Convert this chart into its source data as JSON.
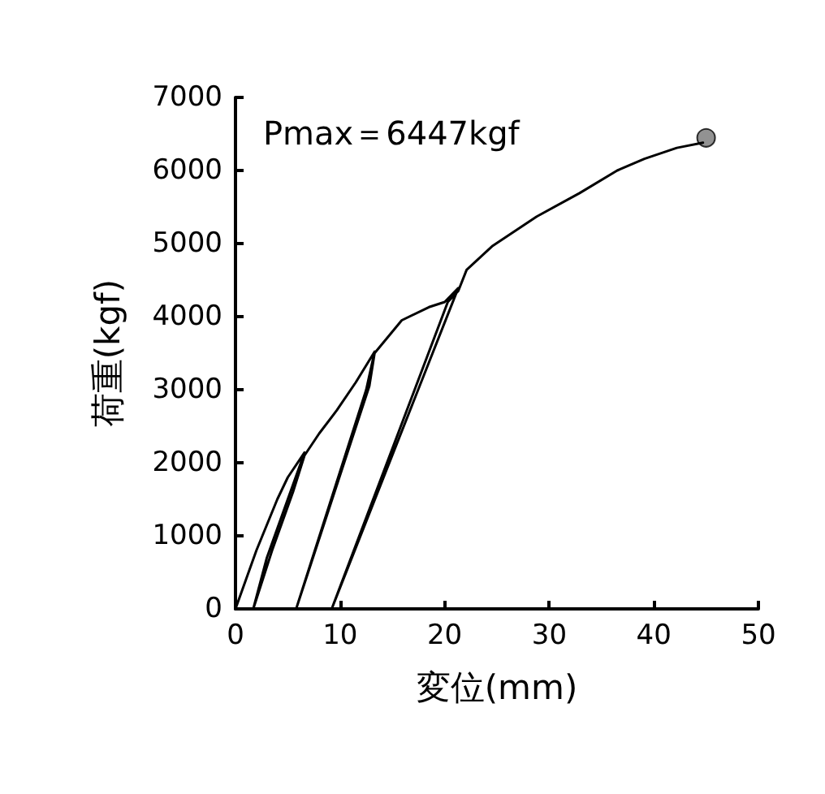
{
  "chart_data": {
    "type": "line",
    "xlabel": "変位(mm)",
    "ylabel": "荷重(kgf)",
    "annotations": [
      "Pmax＝6447kgf"
    ],
    "xlim": [
      0,
      50
    ],
    "xticks": [
      0,
      10,
      20,
      30,
      40,
      50
    ],
    "ylim": [
      0,
      7000
    ],
    "yticks": [
      0,
      1000,
      2000,
      3000,
      4000,
      5000,
      6000,
      7000
    ],
    "grid": false,
    "line_style": "solid",
    "series": [
      {
        "color": "#000000",
        "marker": "none",
        "x": [
          0,
          1,
          2,
          3,
          4,
          5,
          6.6,
          5.5,
          3,
          1.7,
          3.5,
          5.5,
          6.6,
          8,
          9.7,
          11.5,
          13.3,
          12.5,
          5.8,
          12.8,
          13.3,
          15.9,
          18.5,
          20,
          21.3,
          9.2,
          20.3,
          21.3,
          22.1,
          24.6,
          28.8,
          32.9,
          36.5,
          39.1,
          42.2,
          44.7
        ],
        "values": [
          0,
          400,
          800,
          1150,
          1500,
          1800,
          2140,
          1700,
          700,
          0,
          800,
          1600,
          2100,
          2400,
          2720,
          3100,
          3520,
          3000,
          0,
          3050,
          3500,
          3950,
          4130,
          4200,
          4390,
          0,
          4200,
          4350,
          4640,
          4970,
          5370,
          5690,
          6000,
          6160,
          6310,
          6380
        ]
      },
      {
        "type": "scatter",
        "marker": "circle",
        "color": "#777777",
        "x": [
          45
        ],
        "values": [
          6447
        ]
      }
    ]
  }
}
